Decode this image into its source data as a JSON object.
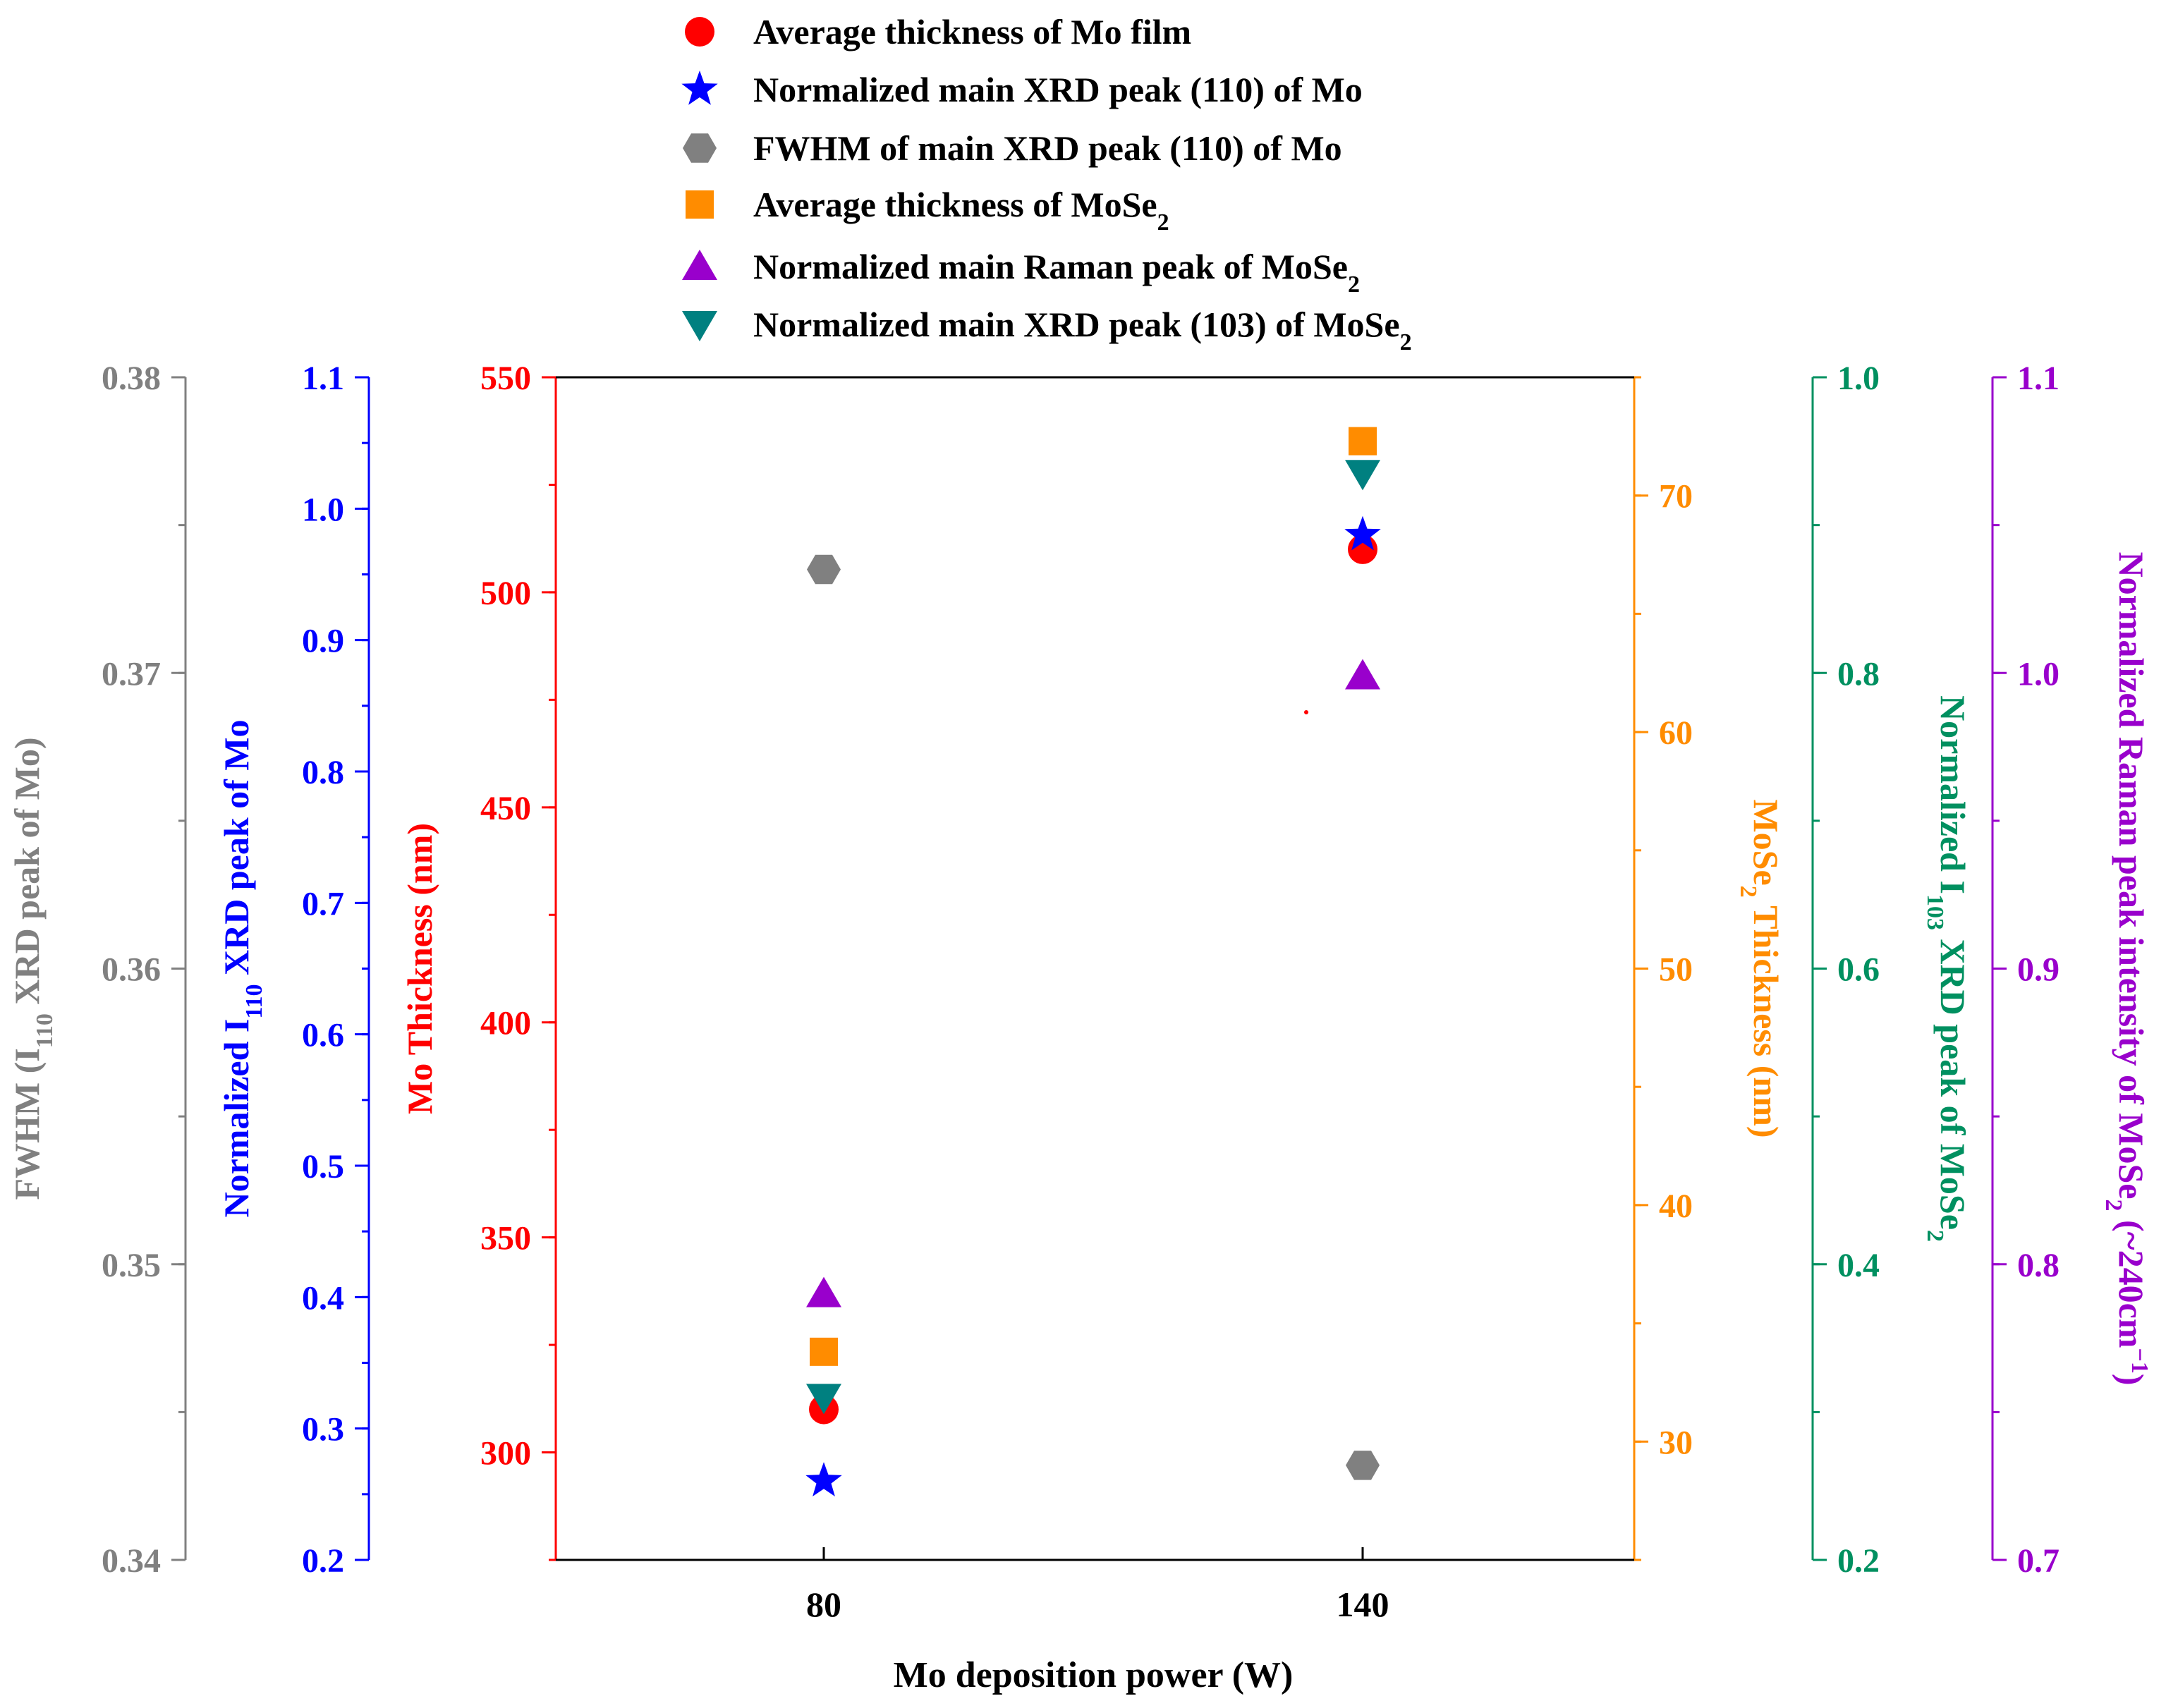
{
  "chart_data": {
    "type": "scatter",
    "x": {
      "label": "Mo deposition power (W)",
      "categories": [
        "80",
        "140"
      ]
    },
    "axes": [
      {
        "id": "fwhm",
        "label_main": "FWHM (I",
        "label_sub": "110",
        "label_tail": " XRD peak of Mo)",
        "color": "#808080",
        "range": [
          0.34,
          0.38
        ],
        "ticks": [
          0.34,
          0.35,
          0.36,
          0.37,
          0.38
        ],
        "minor_step": 0.005,
        "decimals": 2
      },
      {
        "id": "mo_xrd",
        "label_main": "Normalized I",
        "label_sub": "110",
        "label_tail": " XRD peak of Mo",
        "color": "#0000ff",
        "range": [
          0.2,
          1.1
        ],
        "ticks": [
          0.2,
          0.3,
          0.4,
          0.5,
          0.6,
          0.7,
          0.8,
          0.9,
          1.0,
          1.1
        ],
        "minor_step": 0.05,
        "decimals": 1
      },
      {
        "id": "mo_thick",
        "label_main": "Mo Thickness (nm)",
        "label_sub": "",
        "label_tail": "",
        "color": "#ff0000",
        "range": [
          275,
          550
        ],
        "ticks": [
          300,
          350,
          400,
          450,
          500,
          550
        ],
        "minor_step": 25,
        "decimals": 0
      },
      {
        "id": "mose2_thick",
        "label_main": "MoSe",
        "label_sub": "2",
        "label_tail": " Thickness (nm)",
        "color": "#ff8c00",
        "range": [
          25,
          75
        ],
        "ticks": [
          30,
          40,
          50,
          60,
          70
        ],
        "minor_step": 5,
        "decimals": 0
      },
      {
        "id": "mose2_xrd",
        "label_main": "Normalized I",
        "label_sub": "103",
        "label_tail": " XRD peak of MoSe",
        "label_sub2": "2",
        "color": "#009060",
        "range": [
          0.2,
          1.0
        ],
        "ticks": [
          0.2,
          0.4,
          0.6,
          0.8,
          1.0
        ],
        "minor_step": 0.1,
        "decimals": 1
      },
      {
        "id": "raman",
        "label_main": "Normalized Raman peak intensity of MoSe",
        "label_sub": "2",
        "label_tail": " (~240cm",
        "label_sup": "−1",
        "label_end": ")",
        "color": "#9900cc",
        "range": [
          0.7,
          1.1
        ],
        "ticks": [
          0.7,
          0.8,
          0.9,
          1.0,
          1.1
        ],
        "minor_step": 0.05,
        "decimals": 1
      }
    ],
    "series": [
      {
        "name": "Average thickness of Mo film",
        "axis": "mo_thick",
        "marker": "circle",
        "color": "#ff0000",
        "values": [
          310,
          510
        ]
      },
      {
        "name": "Normalized main XRD peak (110) of Mo",
        "axis": "mo_xrd",
        "marker": "star",
        "color": "#0000ff",
        "values": [
          0.26,
          0.98
        ]
      },
      {
        "name": "FWHM of main XRD peak (110) of Mo",
        "axis": "fwhm",
        "marker": "hexagon",
        "color": "#808080",
        "values": [
          0.3735,
          0.3432
        ]
      },
      {
        "name": "Average thickness of MoSe",
        "name_sub": "2",
        "axis": "mose2_thick",
        "marker": "square",
        "color": "#ff8c00",
        "values": [
          33.8,
          72.3
        ]
      },
      {
        "name": "Normalized main Raman peak of MoSe",
        "name_sub": "2",
        "axis": "raman",
        "marker": "triangle-up",
        "color": "#9900cc",
        "values": [
          0.79,
          0.999
        ]
      },
      {
        "name": "Normalized main XRD peak (103) of MoSe",
        "name_sub": "2",
        "axis": "mose2_xrd",
        "marker": "triangle-down",
        "color": "#008080",
        "values": [
          0.31,
          0.935
        ]
      }
    ],
    "legend_position": "top",
    "grid": false
  }
}
